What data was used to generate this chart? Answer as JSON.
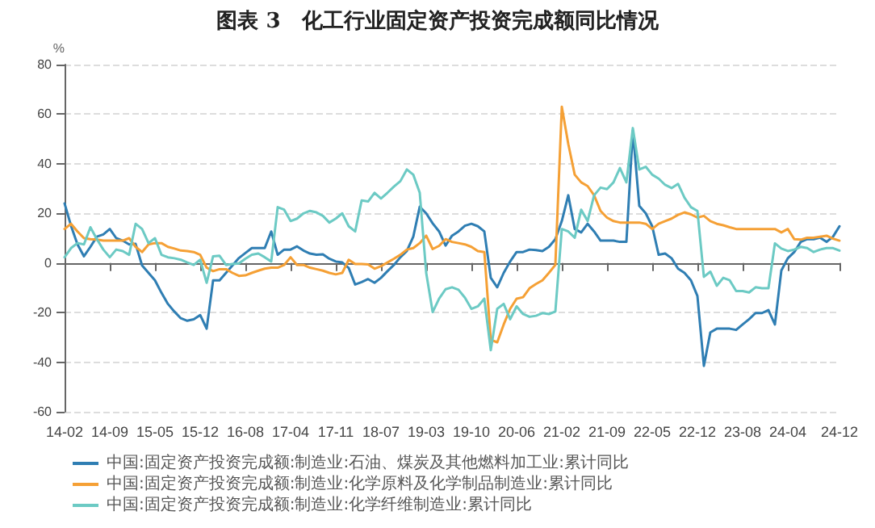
{
  "chart_data": {
    "type": "line",
    "title": "图表 3　化工行业固定资产投资完成额同比情况",
    "ylabel": "%",
    "categories": [
      "14-02",
      null,
      null,
      null,
      null,
      null,
      null,
      "14-09",
      null,
      null,
      null,
      null,
      null,
      null,
      "15-05",
      null,
      null,
      null,
      null,
      null,
      null,
      "15-12",
      null,
      null,
      null,
      null,
      null,
      null,
      "16-08",
      null,
      null,
      null,
      null,
      null,
      null,
      "17-04",
      null,
      null,
      null,
      null,
      null,
      null,
      "17-11",
      null,
      null,
      null,
      null,
      null,
      null,
      "18-07",
      null,
      null,
      null,
      null,
      null,
      null,
      "19-03",
      null,
      null,
      null,
      null,
      null,
      null,
      "19-10",
      null,
      null,
      null,
      null,
      null,
      null,
      "20-06",
      null,
      null,
      null,
      null,
      null,
      null,
      "21-02",
      null,
      null,
      null,
      null,
      null,
      null,
      "21-09",
      null,
      null,
      null,
      null,
      null,
      null,
      "22-05",
      null,
      null,
      null,
      null,
      null,
      null,
      "22-12",
      null,
      null,
      null,
      null,
      null,
      null,
      "23-08",
      null,
      null,
      null,
      null,
      null,
      null,
      "24-04",
      null,
      null,
      null,
      null,
      null,
      null,
      null,
      "24-12"
    ],
    "series": [
      {
        "name": "中国:固定资产投资完成额:制造业:石油、煤炭及其他燃料加工业:累计同比",
        "color": "#2f7eb3",
        "values": [
          24,
          15,
          7.5,
          2.7,
          6.5,
          10.6,
          11.5,
          13.7,
          10,
          9,
          7.5,
          7.7,
          -1,
          -4,
          -7,
          -12,
          -16.5,
          -19.6,
          -22.3,
          -23.3,
          -22.7,
          -21,
          -26.5,
          -7,
          -7,
          -4,
          -1,
          2,
          4,
          6,
          6,
          6,
          12.7,
          3.3,
          5.4,
          5.4,
          6.7,
          5,
          3.8,
          3.3,
          3.5,
          1.7,
          0.6,
          0.2,
          -2,
          -8.7,
          -7.7,
          -6.5,
          -8,
          -6,
          -3.3,
          -0.8,
          2.3,
          4.8,
          10.6,
          22.7,
          20,
          16,
          12.7,
          7,
          11,
          12.7,
          15,
          15.8,
          14.8,
          12.7,
          -6,
          -9.8,
          -4,
          0.6,
          4.4,
          4.4,
          5.4,
          5.2,
          4.8,
          6.5,
          9.6,
          16.9,
          27.3,
          13.7,
          12.3,
          15.8,
          12.7,
          9,
          9,
          9,
          8.5,
          8.5,
          53.3,
          23,
          20,
          14.8,
          3.3,
          3.8,
          1.9,
          -2.3,
          -4,
          -7,
          -13.3,
          -41.5,
          -28,
          -26.5,
          -26.5,
          -26.5,
          -27,
          -24.8,
          -22.7,
          -20.2,
          -20.2,
          -19,
          -24.8,
          -3,
          1.9,
          4.4,
          8.5,
          9.6,
          9.6,
          10.2,
          8.5,
          10.6,
          14.8
        ]
      },
      {
        "name": "中国:固定资产投资完成额:制造业:化学原料及化学制品制造业:累计同比",
        "color": "#f5a035",
        "values": [
          13.7,
          15.8,
          12.7,
          10,
          9.6,
          9.4,
          9,
          9,
          9,
          9,
          10,
          6.5,
          4.4,
          7.5,
          8,
          8,
          6.5,
          5.8,
          5,
          4.8,
          4.4,
          3.3,
          -1.9,
          -3.3,
          -2.5,
          -2.5,
          -4,
          -5.2,
          -5,
          -4,
          -3.1,
          -2.3,
          -1.9,
          -1.9,
          -0.8,
          2.3,
          -0.8,
          -0.8,
          -1.9,
          -2.5,
          -3.1,
          -4,
          -4.6,
          -4,
          1.3,
          -0.4,
          -0.4,
          -0.6,
          -2.3,
          -1.3,
          0.2,
          1.7,
          3.3,
          5.4,
          6,
          8,
          11,
          5.6,
          6.9,
          9.6,
          8.5,
          8,
          7.5,
          6.5,
          4.8,
          4.4,
          -31,
          -32,
          -24.8,
          -18.5,
          -14.4,
          -13.8,
          -10.2,
          -8.5,
          -7,
          -4,
          -0.8,
          63,
          48,
          35.6,
          32.5,
          31,
          27.3,
          21,
          18.3,
          16.9,
          16.3,
          16.3,
          16.3,
          16.3,
          15.8,
          13.7,
          15.8,
          16.9,
          17.9,
          19.4,
          20.4,
          19.6,
          18.3,
          19,
          16.9,
          15.8,
          15.2,
          14.4,
          13.7,
          13.7,
          13.7,
          13.7,
          13.7,
          13.7,
          13.7,
          12.3,
          13.7,
          9.6,
          9.4,
          10.2,
          10.2,
          10.6,
          11,
          9.8,
          9
        ]
      },
      {
        "name": "中国:固定资产投资完成额:制造业:化学纤维制造业:累计同比",
        "color": "#6ccac4",
        "values": [
          2.3,
          6,
          8,
          7.5,
          14.4,
          9.6,
          5.4,
          2.3,
          5.4,
          4.8,
          3.3,
          15.8,
          13.7,
          8,
          10,
          3.3,
          2.3,
          1.9,
          1.3,
          0.2,
          -0.8,
          1.3,
          -8,
          2.7,
          2.9,
          -0.8,
          -0.4,
          -0.2,
          1.7,
          3.3,
          3.8,
          2.3,
          0.6,
          22.5,
          21.5,
          16.9,
          17.9,
          20,
          21,
          20.4,
          19,
          16.3,
          17.9,
          20,
          14.8,
          12.7,
          25.2,
          24.8,
          28.3,
          26,
          28.3,
          30.8,
          33,
          37.7,
          35.6,
          28.3,
          -4,
          -19.8,
          -14.4,
          -10.6,
          -9.8,
          -10.8,
          -14,
          -18.5,
          -17.5,
          -14.4,
          -35.2,
          -18.5,
          -16.5,
          -22.7,
          -17.5,
          -20.6,
          -21.7,
          -21.3,
          -20.2,
          -20.6,
          -19.6,
          13.7,
          12.7,
          10.2,
          21.5,
          16.9,
          27.3,
          30.4,
          29.8,
          32.5,
          38.3,
          32.5,
          54.4,
          37.7,
          38.8,
          35.6,
          34,
          31.5,
          30.2,
          31.9,
          26.3,
          22.5,
          21,
          -5.6,
          -3.5,
          -9.2,
          -6,
          -7,
          -11.3,
          -11.3,
          -11.9,
          -9.8,
          -10.2,
          -10.2,
          7.9,
          5.8,
          4.8,
          5.4,
          6.5,
          6,
          4.4,
          5.4,
          6,
          6,
          5
        ]
      }
    ],
    "ylim": [
      -60,
      80
    ],
    "yticks": [
      -60,
      -40,
      -20,
      0,
      20,
      40,
      60,
      80
    ],
    "grid": "y",
    "legend": "bottom",
    "marker": "none",
    "line_style": "solid"
  }
}
